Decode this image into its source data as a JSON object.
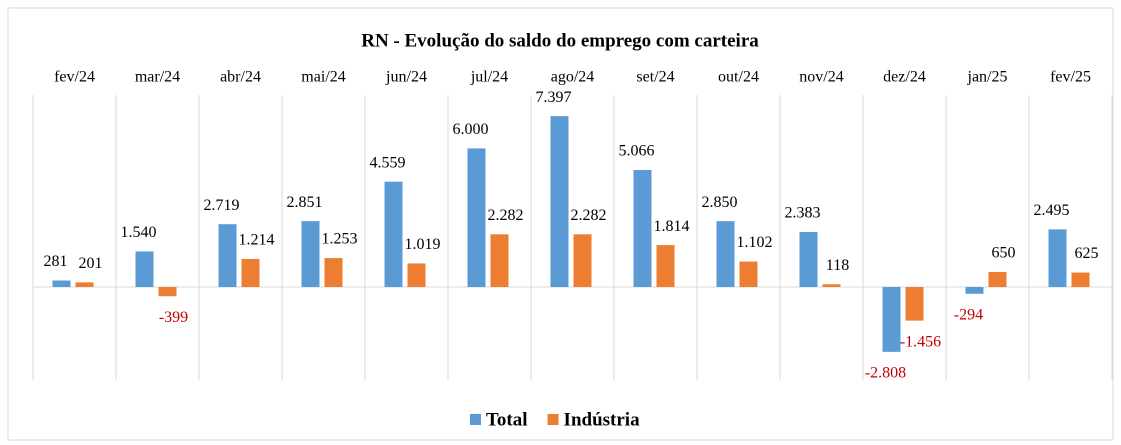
{
  "chart_data": {
    "type": "bar",
    "title": "RN - Evolução do saldo do emprego com carteira",
    "categories": [
      "fev/24",
      "mar/24",
      "abr/24",
      "mai/24",
      "jun/24",
      "jul/24",
      "ago/24",
      "set/24",
      "out/24",
      "nov/24",
      "dez/24",
      "jan/25",
      "fev/25"
    ],
    "series": [
      {
        "name": "Total",
        "color": "#5b9bd5",
        "values": [
          281,
          1540,
          2719,
          2851,
          4559,
          6000,
          7397,
          5066,
          2850,
          2383,
          -2808,
          -294,
          2495
        ],
        "value_labels": [
          "281",
          "1.540",
          "2.719",
          "2.851",
          "4.559",
          "6.000",
          "7.397",
          "5.066",
          "2.850",
          "2.383",
          "-2.808",
          "-294",
          "2.495"
        ]
      },
      {
        "name": "Indústria",
        "color": "#ed7d31",
        "values": [
          201,
          -399,
          1214,
          1253,
          1019,
          2282,
          2282,
          1814,
          1102,
          118,
          -1456,
          650,
          625
        ],
        "value_labels": [
          "201",
          "-399",
          "1.214",
          "1.253",
          "1.019",
          "2.282",
          "2.282",
          "1.814",
          "1.102",
          "118",
          "-1.456",
          "650",
          "625"
        ]
      }
    ],
    "negative_label_color": "#c00000",
    "legend": "bottom"
  }
}
